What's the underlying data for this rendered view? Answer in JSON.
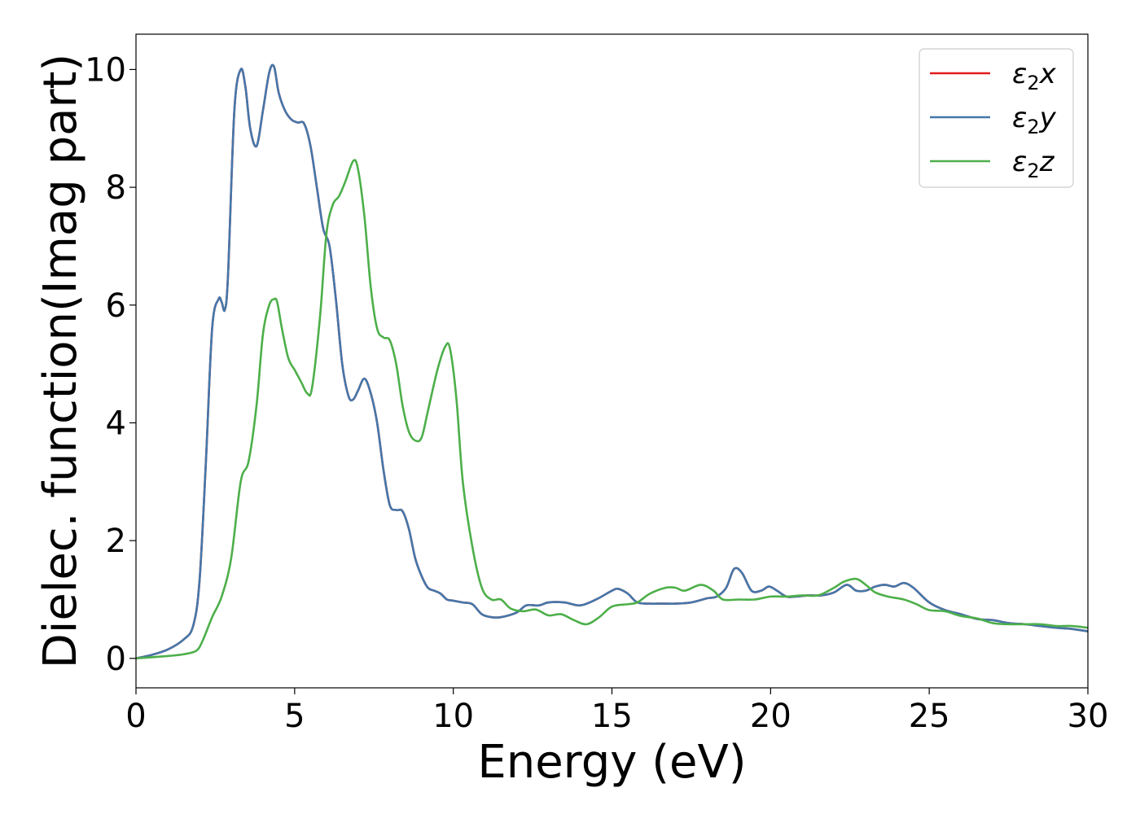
{
  "chart_data": {
    "type": "line",
    "xlabel": "Energy (eV)",
    "ylabel": "Dielec. function(Imag part)",
    "xlim": [
      0,
      30
    ],
    "ylim": [
      -0.5,
      10.6
    ],
    "xticks": [
      0,
      5,
      10,
      15,
      20,
      25,
      30
    ],
    "yticks": [
      0,
      2,
      4,
      6,
      8,
      10
    ],
    "grid": false,
    "legend_position": "top-right",
    "series": [
      {
        "name": "ε₂x",
        "legend": {
          "base": "ε",
          "sub": "2",
          "suffix": "x"
        },
        "color": "#e41a1c",
        "x": [
          0,
          0.5,
          1,
          1.5,
          1.8,
          2,
          2.2,
          2.4,
          2.6,
          2.7,
          2.8,
          2.9,
          3.1,
          3.3,
          3.45,
          3.6,
          3.8,
          4,
          4.2,
          4.35,
          4.5,
          4.7,
          4.9,
          5.1,
          5.3,
          5.5,
          5.7,
          5.9,
          6.1,
          6.3,
          6.5,
          6.7,
          6.85,
          7,
          7.2,
          7.4,
          7.6,
          7.8,
          8,
          8.2,
          8.4,
          8.6,
          8.8,
          9,
          9.2,
          9.4,
          9.6,
          9.8,
          10,
          10.3,
          10.6,
          10.9,
          11.2,
          11.5,
          12,
          12.3,
          12.7,
          13,
          13.5,
          14,
          14.5,
          15,
          15.2,
          15.5,
          15.8,
          16.2,
          16.6,
          17,
          17.5,
          18,
          18.3,
          18.6,
          18.85,
          19.1,
          19.4,
          19.7,
          19.95,
          20.2,
          20.5,
          20.8,
          21.2,
          21.6,
          22,
          22.4,
          22.7,
          23,
          23.3,
          23.6,
          23.9,
          24.2,
          24.5,
          25,
          25.5,
          26,
          26.5,
          27,
          27.5,
          28,
          28.5,
          29,
          29.5,
          30
        ],
        "y": [
          0,
          0.06,
          0.15,
          0.32,
          0.55,
          1.3,
          3.3,
          5.6,
          6.1,
          6.05,
          5.92,
          6.5,
          9.3,
          10.0,
          9.7,
          9.0,
          8.7,
          9.3,
          9.95,
          10.05,
          9.6,
          9.3,
          9.15,
          9.1,
          9.08,
          8.7,
          8.0,
          7.3,
          7.0,
          6.1,
          5.0,
          4.45,
          4.4,
          4.55,
          4.75,
          4.5,
          4.0,
          3.2,
          2.6,
          2.52,
          2.5,
          2.2,
          1.7,
          1.4,
          1.2,
          1.15,
          1.1,
          1.0,
          0.98,
          0.95,
          0.92,
          0.75,
          0.7,
          0.7,
          0.78,
          0.9,
          0.9,
          0.95,
          0.95,
          0.9,
          1.0,
          1.15,
          1.18,
          1.1,
          0.95,
          0.93,
          0.93,
          0.93,
          0.95,
          1.02,
          1.05,
          1.2,
          1.52,
          1.45,
          1.15,
          1.15,
          1.22,
          1.15,
          1.05,
          1.05,
          1.07,
          1.07,
          1.12,
          1.25,
          1.15,
          1.15,
          1.22,
          1.25,
          1.22,
          1.28,
          1.2,
          0.95,
          0.82,
          0.75,
          0.67,
          0.65,
          0.6,
          0.58,
          0.55,
          0.52,
          0.5,
          0.46
        ]
      },
      {
        "name": "ε₂y",
        "legend": {
          "base": "ε",
          "sub": "2",
          "suffix": "y"
        },
        "color": "#4477aa",
        "x": [
          0,
          0.5,
          1,
          1.5,
          1.8,
          2,
          2.2,
          2.4,
          2.6,
          2.7,
          2.8,
          2.9,
          3.1,
          3.3,
          3.45,
          3.6,
          3.8,
          4,
          4.2,
          4.35,
          4.5,
          4.7,
          4.9,
          5.1,
          5.3,
          5.5,
          5.7,
          5.9,
          6.1,
          6.3,
          6.5,
          6.7,
          6.85,
          7,
          7.2,
          7.4,
          7.6,
          7.8,
          8,
          8.2,
          8.4,
          8.6,
          8.8,
          9,
          9.2,
          9.4,
          9.6,
          9.8,
          10,
          10.3,
          10.6,
          10.9,
          11.2,
          11.5,
          12,
          12.3,
          12.7,
          13,
          13.5,
          14,
          14.5,
          15,
          15.2,
          15.5,
          15.8,
          16.2,
          16.6,
          17,
          17.5,
          18,
          18.3,
          18.6,
          18.85,
          19.1,
          19.4,
          19.7,
          19.95,
          20.2,
          20.5,
          20.8,
          21.2,
          21.6,
          22,
          22.4,
          22.7,
          23,
          23.3,
          23.6,
          23.9,
          24.2,
          24.5,
          25,
          25.5,
          26,
          26.5,
          27,
          27.5,
          28,
          28.5,
          29,
          29.5,
          30
        ],
        "y": [
          0,
          0.06,
          0.15,
          0.32,
          0.55,
          1.3,
          3.3,
          5.6,
          6.1,
          6.05,
          5.92,
          6.5,
          9.3,
          10.0,
          9.7,
          9.0,
          8.7,
          9.3,
          9.95,
          10.05,
          9.6,
          9.3,
          9.15,
          9.1,
          9.08,
          8.7,
          8.0,
          7.3,
          7.0,
          6.1,
          5.0,
          4.45,
          4.4,
          4.55,
          4.75,
          4.5,
          4.0,
          3.2,
          2.6,
          2.52,
          2.5,
          2.2,
          1.7,
          1.4,
          1.2,
          1.15,
          1.1,
          1.0,
          0.98,
          0.95,
          0.92,
          0.75,
          0.7,
          0.7,
          0.78,
          0.9,
          0.9,
          0.95,
          0.95,
          0.9,
          1.0,
          1.15,
          1.18,
          1.1,
          0.95,
          0.93,
          0.93,
          0.93,
          0.95,
          1.02,
          1.05,
          1.2,
          1.52,
          1.45,
          1.15,
          1.15,
          1.22,
          1.15,
          1.05,
          1.05,
          1.07,
          1.07,
          1.12,
          1.25,
          1.15,
          1.15,
          1.22,
          1.25,
          1.22,
          1.28,
          1.2,
          0.95,
          0.82,
          0.75,
          0.67,
          0.65,
          0.6,
          0.58,
          0.55,
          0.52,
          0.5,
          0.46
        ]
      },
      {
        "name": "ε₂z",
        "legend": {
          "base": "ε",
          "sub": "2",
          "suffix": "z"
        },
        "color": "#4daf4a",
        "x": [
          0,
          1,
          1.5,
          1.9,
          2.1,
          2.4,
          2.7,
          3,
          3.3,
          3.55,
          3.8,
          4,
          4.2,
          4.35,
          4.45,
          4.6,
          4.8,
          5,
          5.2,
          5.4,
          5.55,
          5.8,
          6,
          6.2,
          6.4,
          6.6,
          6.85,
          7,
          7.2,
          7.4,
          7.6,
          7.8,
          8,
          8.2,
          8.4,
          8.6,
          8.8,
          9,
          9.2,
          9.5,
          9.75,
          9.9,
          10.1,
          10.3,
          10.6,
          10.9,
          11.2,
          11.5,
          11.8,
          12.2,
          12.6,
          13,
          13.4,
          13.8,
          14.2,
          14.6,
          15,
          15.5,
          15.8,
          16.2,
          16.7,
          17,
          17.3,
          17.8,
          18.2,
          18.5,
          19,
          19.5,
          20,
          20.5,
          21,
          21.5,
          22,
          22.3,
          22.7,
          23,
          23.3,
          23.7,
          24.2,
          24.6,
          25,
          25.5,
          26,
          26.5,
          27,
          27.5,
          28,
          28.5,
          29,
          29.5,
          30
        ],
        "y": [
          0,
          0.04,
          0.07,
          0.13,
          0.3,
          0.7,
          1.05,
          1.7,
          3.0,
          3.35,
          4.3,
          5.5,
          6.0,
          6.1,
          6.05,
          5.6,
          5.1,
          4.9,
          4.7,
          4.5,
          4.6,
          5.8,
          7.2,
          7.7,
          7.85,
          8.1,
          8.45,
          8.3,
          7.5,
          6.3,
          5.6,
          5.45,
          5.4,
          5.0,
          4.3,
          3.85,
          3.7,
          3.75,
          4.2,
          4.9,
          5.3,
          5.25,
          4.4,
          3.0,
          1.9,
          1.2,
          1.0,
          1.0,
          0.85,
          0.8,
          0.83,
          0.73,
          0.75,
          0.65,
          0.58,
          0.7,
          0.88,
          0.92,
          0.95,
          1.1,
          1.2,
          1.2,
          1.15,
          1.25,
          1.15,
          1.0,
          1.0,
          1.0,
          1.05,
          1.05,
          1.07,
          1.07,
          1.2,
          1.3,
          1.35,
          1.25,
          1.12,
          1.05,
          1.0,
          0.92,
          0.82,
          0.8,
          0.72,
          0.68,
          0.6,
          0.58,
          0.58,
          0.58,
          0.55,
          0.55,
          0.52
        ]
      }
    ]
  }
}
